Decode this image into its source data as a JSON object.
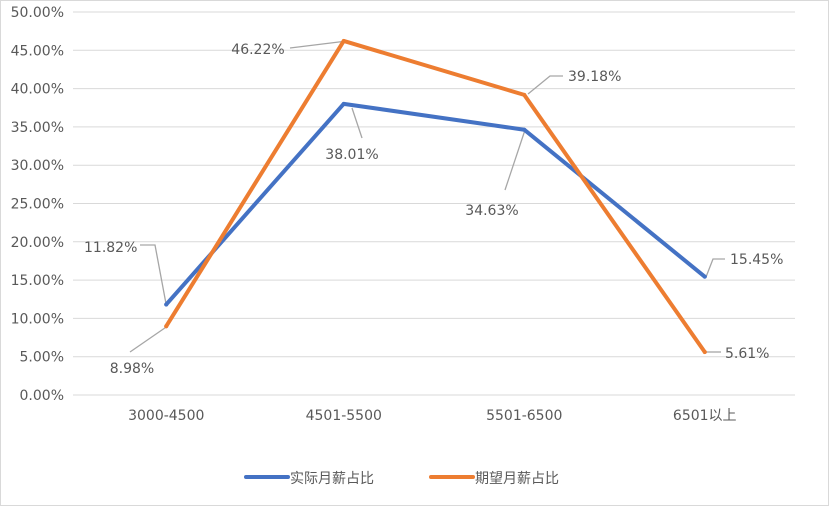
{
  "chart_data": {
    "type": "line",
    "title": "",
    "xlabel": "",
    "ylabel": "",
    "categories": [
      "3000-4500",
      "4501-5500",
      "5501-6500",
      "6501以上"
    ],
    "series": [
      {
        "name": "实际月薪占比",
        "values": [
          11.82,
          38.01,
          34.63,
          15.45
        ],
        "labels": [
          "11.82%",
          "38.01%",
          "34.63%",
          "15.45%"
        ],
        "color": "#4472C4"
      },
      {
        "name": "期望月薪占比",
        "values": [
          8.98,
          46.22,
          39.18,
          5.61
        ],
        "labels": [
          "8.98%",
          "46.22%",
          "39.18%",
          "5.61%"
        ],
        "color": "#ED7D31"
      }
    ],
    "ylim": [
      0,
      50
    ],
    "yticks": [
      "0.00%",
      "5.00%",
      "10.00%",
      "15.00%",
      "20.00%",
      "25.00%",
      "30.00%",
      "35.00%",
      "40.00%",
      "45.00%",
      "50.00%"
    ],
    "grid": true,
    "legend": "bottom"
  }
}
